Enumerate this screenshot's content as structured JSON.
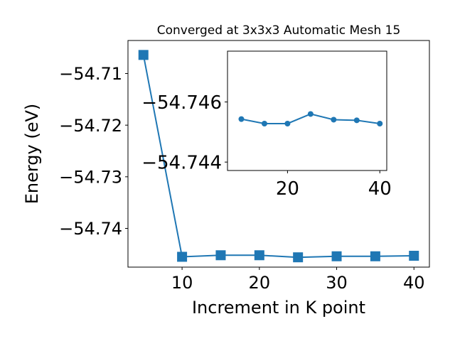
{
  "chart_data": [
    {
      "type": "line",
      "title": "Converged at 3x3x3 Automatic Mesh 15",
      "xlabel": "Increment in K point",
      "ylabel": "Energy (eV)",
      "x": [
        5,
        10,
        15,
        20,
        25,
        30,
        35,
        40
      ],
      "series": [
        {
          "values": [
            -54.7064,
            -54.7455,
            -54.7452,
            -54.7452,
            -54.7456,
            -54.7454,
            -54.7454,
            -54.7453
          ],
          "color": "#1f77b4",
          "marker": "square"
        }
      ],
      "xlim": [
        3,
        42
      ],
      "ylim": [
        -54.7475,
        -54.7036
      ],
      "xticks": [
        10,
        20,
        30,
        40
      ],
      "xtick_labels": [
        "10",
        "20",
        "30",
        "40"
      ],
      "yticks": [
        -54.71,
        -54.72,
        -54.73,
        -54.74
      ],
      "ytick_labels": [
        "−54.71",
        "−54.72",
        "−54.73",
        "−54.74"
      ],
      "grid": false
    },
    {
      "type": "line",
      "inset": true,
      "x": [
        10,
        15,
        20,
        25,
        30,
        35,
        40
      ],
      "series": [
        {
          "values": [
            -54.74543,
            -54.74528,
            -54.74528,
            -54.7456,
            -54.74541,
            -54.74539,
            -54.74528
          ],
          "color": "#1f77b4",
          "marker": "circle"
        }
      ],
      "xlim": [
        7,
        41.5
      ],
      "ylim": [
        -54.74372,
        -54.74769
      ],
      "xticks": [
        20,
        40
      ],
      "xtick_labels": [
        "20",
        "40"
      ],
      "yticks": [
        -54.746,
        -54.744
      ],
      "ytick_labels": [
        "−54.746",
        "−54.744"
      ],
      "grid": false
    }
  ]
}
